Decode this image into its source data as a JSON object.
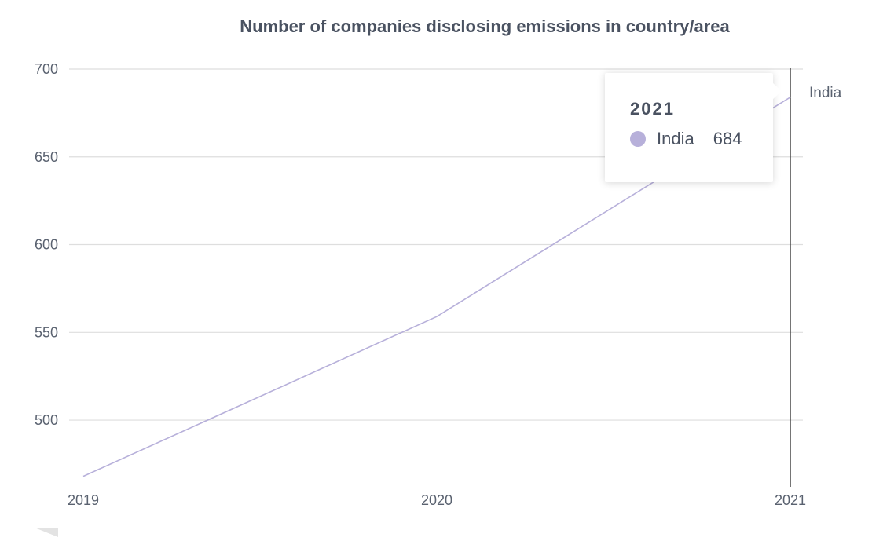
{
  "chart_data": {
    "type": "line",
    "title": "Number of companies disclosing emissions in country/area",
    "xlabel": "",
    "ylabel": "",
    "x": [
      "2019",
      "2020",
      "2021"
    ],
    "ylim": [
      462,
      700
    ],
    "yticks": [
      500,
      550,
      600,
      650,
      700
    ],
    "grid": true,
    "series": [
      {
        "name": "India",
        "values": [
          468,
          559,
          684
        ],
        "color": "#b7b0da"
      }
    ],
    "tooltip": {
      "title": "2021",
      "series_name": "India",
      "value": "684"
    }
  }
}
